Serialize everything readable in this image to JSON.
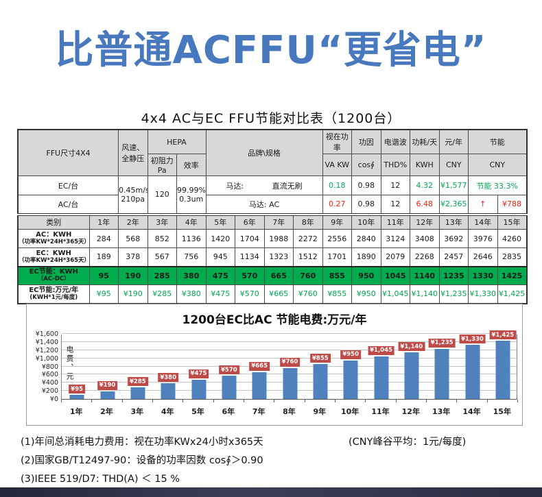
{
  "title": "比普通ACFFU“更省电”",
  "table": {
    "caption": "4x4 AC与EC FFU节能对比表（1200台）",
    "headers": {
      "ffu_size": "FFU尺寸4X4",
      "wind_line1": "风速、",
      "wind_line2": "全静压",
      "hepa": "HEPA",
      "init_resistance": "初阻力Pa",
      "efficiency": "效率",
      "brand": "品牌\\规格",
      "apparent_power": "视在功率",
      "apparent_power_unit": "VA KW",
      "power_factor": "功因",
      "power_factor_unit": "cos∮",
      "harmonics": "电谐波",
      "harmonics_unit": "THD%",
      "consumption_day": "功耗/天",
      "consumption_unit": "KWH",
      "yuan_year": "元/年",
      "yuan_unit": "CNY",
      "saving": "节能",
      "saving_unit": "CNY"
    },
    "spec_rows": {
      "shared": {
        "wind_line1": "0.45m/s",
        "wind_line2": "210pa",
        "resistance": "120",
        "efficiency_line1": "99.99%",
        "efficiency_line2": "0.3um"
      },
      "ec": {
        "label": "EC/台",
        "motor_label": "马达:",
        "motor_value": "直流无刷",
        "va": "0.18",
        "cos": "0.98",
        "thd": "12",
        "kwh": "4.32",
        "cny": "¥1,577",
        "saving": "节能 33.3%"
      },
      "ac": {
        "label": "AC/台",
        "motor_label": "马达: AC",
        "va": "0.27",
        "cos": "0.98",
        "thd": "12",
        "kwh": "6.48",
        "cny": "¥2,365",
        "arrow": "↑",
        "saving": "¥788"
      }
    },
    "category_label": "类别",
    "years": [
      "1年",
      "2年",
      "3年",
      "4年",
      "5年",
      "6年",
      "7年",
      "8年",
      "9年",
      "10年",
      "11年",
      "12年",
      "13年",
      "14年",
      "15年"
    ],
    "rows": [
      {
        "label_line1": "AC：KWH",
        "label_line2": "（功率KW*24H*365天）",
        "style": "plain",
        "values": [
          "284",
          "568",
          "852",
          "1136",
          "1420",
          "1704",
          "1988",
          "2272",
          "2556",
          "2840",
          "3124",
          "3408",
          "3692",
          "3976",
          "4260"
        ]
      },
      {
        "label_line1": "EC：KWH",
        "label_line2": "（功率KW*24H*365天）",
        "style": "plain",
        "values": [
          "189",
          "378",
          "567",
          "756",
          "945",
          "1134",
          "1323",
          "1512",
          "1701",
          "1890",
          "2079",
          "2268",
          "2457",
          "2646",
          "2835"
        ]
      },
      {
        "label_line1": "EC节能：KWH",
        "label_line2": "（AC-DC）",
        "style": "green-row",
        "values": [
          "95",
          "190",
          "285",
          "380",
          "475",
          "570",
          "665",
          "760",
          "855",
          "950",
          "1045",
          "1140",
          "1235",
          "1330",
          "1425"
        ]
      },
      {
        "label_line1": "EC节能:万元/年",
        "label_line2": "(KWH*1元/每度)",
        "style": "green-text",
        "values": [
          "¥95",
          "¥190",
          "¥285",
          "¥380",
          "¥475",
          "¥570",
          "¥665",
          "¥760",
          "¥855",
          "¥950",
          "¥1,045",
          "¥1,140",
          "¥1,235",
          "¥1,330",
          "¥1,425"
        ]
      }
    ]
  },
  "chart_data": {
    "type": "bar",
    "title": "1200台EC比AC 节能电费:万元/年",
    "categories": [
      "1年",
      "2年",
      "3年",
      "4年",
      "5年",
      "6年",
      "7年",
      "8年",
      "9年",
      "10年",
      "11年",
      "12年",
      "13年",
      "14年",
      "15年"
    ],
    "values": [
      95,
      190,
      285,
      380,
      475,
      570,
      665,
      760,
      855,
      950,
      1045,
      1140,
      1235,
      1330,
      1425
    ],
    "value_labels": [
      "¥95",
      "¥190",
      "¥285",
      "¥380",
      "¥475",
      "¥570",
      "¥665",
      "¥760",
      "¥855",
      "¥950",
      "¥1,045",
      "¥1,140",
      "¥1,235",
      "¥1,330",
      "¥1,425"
    ],
    "xlabel": "",
    "ylabel": "电费、元",
    "ylim": [
      0,
      1600
    ],
    "ytick_step": 200,
    "ytick_labels": [
      "¥0",
      "¥200",
      "¥400",
      "¥600",
      "¥800",
      "¥1,000",
      "¥1,200",
      "¥1,400",
      "¥1,600"
    ],
    "grid": true,
    "legend": false,
    "bar_color": "#4F81BD",
    "label_bg_color": "#BE4B48"
  },
  "notes": {
    "line1": "(1)年间总消耗电力费用：视在功率KWx24小时x365天",
    "line1_right": "(CNY峰谷平均：1元/每度)",
    "line2": "(2)国家GB/T12497-90：设备的功率因数 cos∮＞0.90",
    "line3": "(3)IEEE 519/D7: THD(A) ＜ 15 %"
  },
  "colors": {
    "title_blue": "#4878BE",
    "header_gray": "#D8D8D8",
    "green_bg": "#00AC4E",
    "green_text": "#00A651",
    "red_text": "#FF1A0E",
    "bar_blue": "#4F81BD",
    "bar_label_red": "#BE4B48",
    "footer_navy": "#32324A"
  }
}
